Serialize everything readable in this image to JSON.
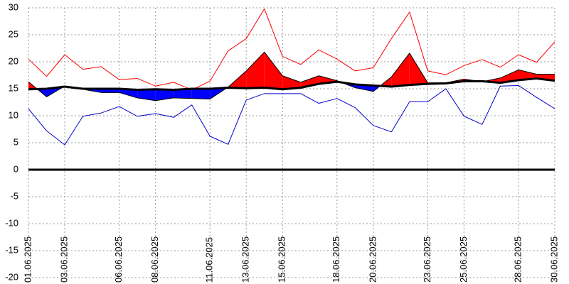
{
  "chart_data": {
    "type": "line",
    "categories": [
      "01.06.2025",
      null,
      "03.06.2025",
      null,
      null,
      "06.06.2025",
      null,
      "08.06.2025",
      null,
      null,
      "11.06.2025",
      null,
      "13.06.2025",
      null,
      "15.06.2025",
      null,
      null,
      "18.06.2025",
      null,
      "20.06.2025",
      null,
      null,
      "23.06.2025",
      null,
      "25.06.2025",
      null,
      null,
      "28.06.2025",
      null,
      "30.06.2025"
    ],
    "series": [
      {
        "color": "#ff0000",
        "values": [
          20.5,
          17.3,
          21.3,
          18.6,
          19.1,
          16.7,
          16.9,
          15.5,
          16.2,
          14.8,
          16.4,
          22.0,
          24.3,
          29.8,
          21.0,
          19.5,
          22.2,
          20.5,
          18.3,
          18.9,
          24.3,
          29.2,
          18.3,
          17.6,
          19.3,
          20.4,
          19.0,
          21.3,
          19.9,
          23.7
        ]
      },
      {
        "color": "#0000cc",
        "values": [
          11.3,
          7.2,
          4.6,
          9.9,
          10.5,
          11.7,
          9.9,
          10.4,
          9.7,
          12.0,
          6.2,
          4.7,
          12.9,
          14.1,
          14.1,
          14.1,
          12.3,
          13.2,
          11.5,
          8.2,
          7.0,
          12.6,
          12.6,
          15.0,
          9.9,
          8.4,
          15.5,
          15.6,
          13.4,
          11.3
        ]
      },
      {
        "color": "#000000",
        "values": [
          14.9,
          15.0,
          15.4,
          15.0,
          15.0,
          15.0,
          14.8,
          14.9,
          14.8,
          15.0,
          15.0,
          15.2,
          15.1,
          15.2,
          14.9,
          15.2,
          15.9,
          16.3,
          15.8,
          15.6,
          15.4,
          15.7,
          15.9,
          16.0,
          16.4,
          16.4,
          16.1,
          16.6,
          16.9,
          16.5
        ]
      },
      {
        "color": "#000000",
        "values": [
          16.3,
          13.5,
          15.5,
          14.9,
          14.3,
          14.3,
          13.3,
          12.8,
          13.3,
          13.2,
          13.1,
          15.3,
          18.3,
          21.8,
          17.4,
          16.2,
          17.4,
          16.5,
          15.2,
          14.5,
          17.2,
          21.6,
          16.1,
          16.1,
          16.8,
          16.3,
          17.0,
          18.5,
          17.7,
          17.7
        ]
      }
    ],
    "band": {
      "series": 3,
      "reference": 2,
      "above": "#ff0000",
      "below": "#0000ff"
    },
    "ylim": [
      -20,
      30
    ],
    "yticks": [
      -20,
      -15,
      -10,
      -5,
      0,
      5,
      10,
      15,
      20,
      25,
      30
    ],
    "zero_line": true,
    "grid": true
  }
}
